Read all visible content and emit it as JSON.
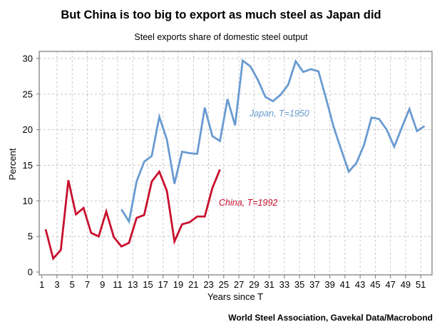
{
  "chart_data": {
    "type": "line",
    "title": "But China is too big to export as much steel as Japan did",
    "subtitle": "Steel exports share of domestic steel output",
    "xlabel": "Years since T",
    "ylabel": "Percent",
    "xlim": [
      1,
      52
    ],
    "ylim": [
      0,
      30
    ],
    "xticks": [
      1,
      3,
      5,
      7,
      9,
      11,
      13,
      15,
      17,
      19,
      21,
      23,
      25,
      27,
      29,
      31,
      33,
      35,
      37,
      39,
      41,
      43,
      45,
      47,
      49,
      51
    ],
    "yticks": [
      0,
      5,
      10,
      15,
      20,
      25,
      30
    ],
    "grid": true,
    "source": "World Steel Association, Gavekal Data/Macrobond",
    "series": [
      {
        "name": "China, T=1992",
        "color": "#c8102e",
        "x": [
          1.5,
          2.5,
          3.5,
          4.5,
          5.5,
          6.5,
          7.5,
          8.5,
          9.5,
          10.5,
          11.5,
          12.5,
          13.5,
          14.5,
          15.5,
          16.5,
          17.5,
          18.5,
          19.5,
          20.5,
          21.5,
          22.5,
          23.5,
          24.5
        ],
        "values": [
          6.0,
          1.9,
          3.1,
          12.9,
          8.1,
          9.0,
          5.5,
          5.0,
          8.5,
          4.9,
          3.6,
          4.1,
          7.6,
          8.0,
          12.7,
          14.1,
          11.4,
          4.3,
          6.7,
          7.0,
          7.8,
          7.8,
          11.8,
          14.4
        ]
      },
      {
        "name": "Japan, T=1950",
        "color": "#6a9bd1",
        "x": [
          11.5,
          12.5,
          13.5,
          14.5,
          15.5,
          16.5,
          17.5,
          18.5,
          19.5,
          20.5,
          21.5,
          22.5,
          23.5,
          24.5,
          25.5,
          26.5,
          27.5,
          28.5,
          29.5,
          30.5,
          31.5,
          32.5,
          33.5,
          34.5,
          35.5,
          36.5,
          37.5,
          38.5,
          39.5,
          40.5,
          41.5,
          42.5,
          43.5,
          44.5,
          45.5,
          46.5,
          47.5,
          48.5,
          49.5,
          50.5,
          51.5
        ],
        "values": [
          8.8,
          7.1,
          12.7,
          15.5,
          16.3,
          21.8,
          18.6,
          12.4,
          16.9,
          16.7,
          16.6,
          23.1,
          19.1,
          18.4,
          24.3,
          20.6,
          29.7,
          28.9,
          27.0,
          24.6,
          24.0,
          24.9,
          26.3,
          29.6,
          28.1,
          28.5,
          28.2,
          24.4,
          20.4,
          17.2,
          14.1,
          15.3,
          17.8,
          21.7,
          21.5,
          20.0,
          17.6,
          20.3,
          22.9,
          19.8,
          20.5
        ]
      }
    ]
  }
}
